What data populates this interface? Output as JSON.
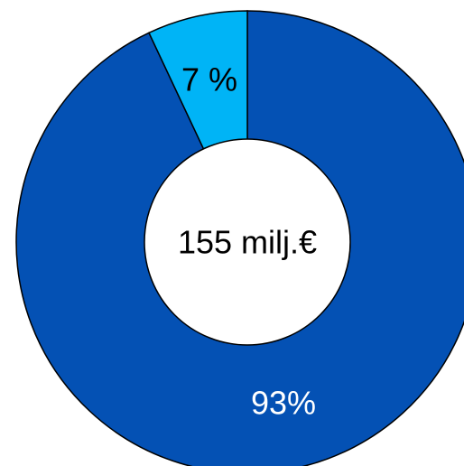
{
  "chart_data": {
    "type": "pie",
    "subtype": "donut",
    "center_label": "155 milj.€",
    "slices": [
      {
        "value": 93,
        "label": "93%",
        "color": "#0451B4",
        "label_color": "#ffffff"
      },
      {
        "value": 7,
        "label": "7 %",
        "color": "#00B4F6",
        "label_color": "#000000"
      }
    ],
    "start": "12 o'clock",
    "direction": "clockwise"
  }
}
